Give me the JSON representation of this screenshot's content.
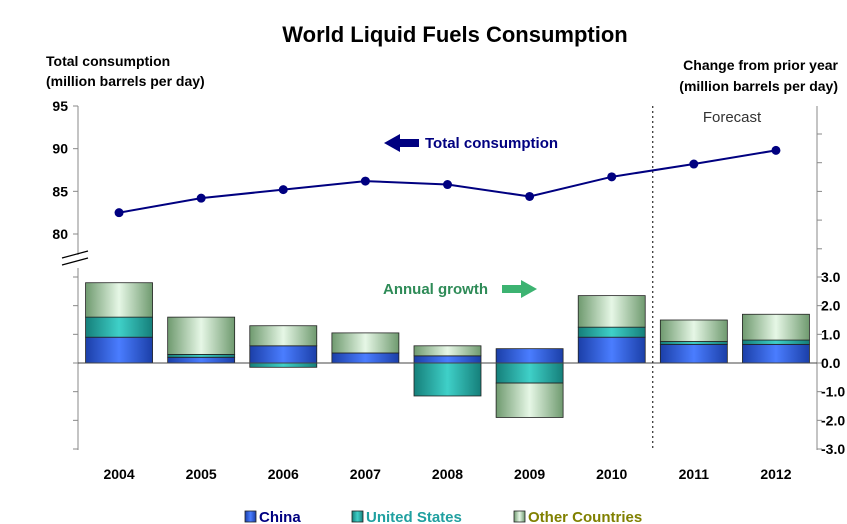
{
  "chart_data": {
    "title": "World Liquid Fuels Consumption",
    "categories": [
      "2004",
      "2005",
      "2006",
      "2007",
      "2008",
      "2009",
      "2010",
      "2011",
      "2012"
    ],
    "forecast_from": "2011",
    "forecast_label": "Forecast",
    "left_axis": {
      "title_line1": "Total consumption",
      "title_line2": "(million barrels per day)",
      "ticks": [
        "80",
        "85",
        "90",
        "95"
      ],
      "range": [
        80,
        95
      ]
    },
    "right_axis": {
      "title_line1": "Change from prior year",
      "title_line2": "(million barrels per day)",
      "ticks": [
        "-3.0",
        "-2.0",
        "-1.0",
        "0.0",
        "1.0",
        "2.0",
        "3.0"
      ],
      "range": [
        -3,
        3
      ]
    },
    "line": {
      "type": "line",
      "name": "Total consumption",
      "color": "#000080",
      "values": [
        82.5,
        84.2,
        85.2,
        86.2,
        85.8,
        84.4,
        86.7,
        88.2,
        89.8
      ]
    },
    "bars": {
      "type": "bar",
      "stacked": true,
      "series": [
        {
          "name": "China",
          "color": "#2f5fe0",
          "values": [
            0.9,
            0.2,
            0.6,
            0.35,
            0.25,
            0.5,
            0.9,
            0.65,
            0.65
          ]
        },
        {
          "name": "United States",
          "color": "#29b5b0",
          "values": [
            0.7,
            0.1,
            -0.15,
            0.0,
            -1.15,
            -0.7,
            0.35,
            0.1,
            0.15
          ]
        },
        {
          "name": "Other Countries",
          "color": "#a8d8a8",
          "values": [
            1.2,
            1.3,
            0.7,
            0.7,
            0.35,
            -1.2,
            1.1,
            0.75,
            0.9
          ]
        }
      ]
    },
    "annotations": {
      "total_consumption": "Total consumption",
      "annual_growth": "Annual growth"
    },
    "legend_position": "bottom"
  }
}
